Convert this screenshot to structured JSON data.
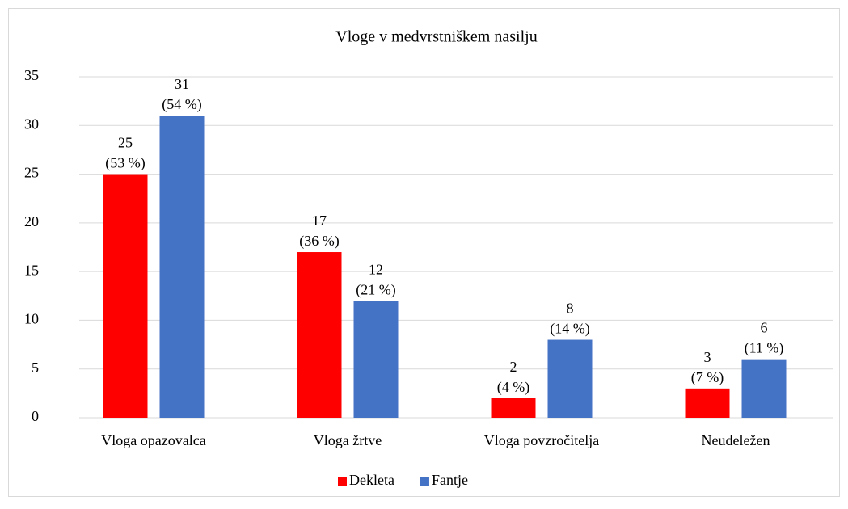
{
  "chart_data": {
    "type": "bar",
    "title": "Vloge v medvrstniškem nasilju",
    "categories": [
      "Vloga opazovalca",
      "Vloga žrtve",
      "Vloga povzročitelja",
      "Neudeležen"
    ],
    "series": [
      {
        "name": "Dekleta",
        "color": "#ff0000",
        "values": [
          25,
          17,
          2,
          3
        ],
        "value_labels": [
          "25\n(53 %)",
          "17\n(36 %)",
          "2\n(4 %)",
          "3\n(7 %)"
        ]
      },
      {
        "name": "Fantje",
        "color": "#4472c4",
        "values": [
          31,
          12,
          8,
          6
        ],
        "value_labels": [
          "31\n(54 %)",
          "12\n(21 %)",
          "8\n(14 %)",
          "6\n(11 %)"
        ]
      }
    ],
    "ylim": [
      0,
      35
    ],
    "yticks": [
      0,
      5,
      10,
      15,
      20,
      25,
      30,
      35
    ],
    "grid": true,
    "legend": "bottom"
  }
}
